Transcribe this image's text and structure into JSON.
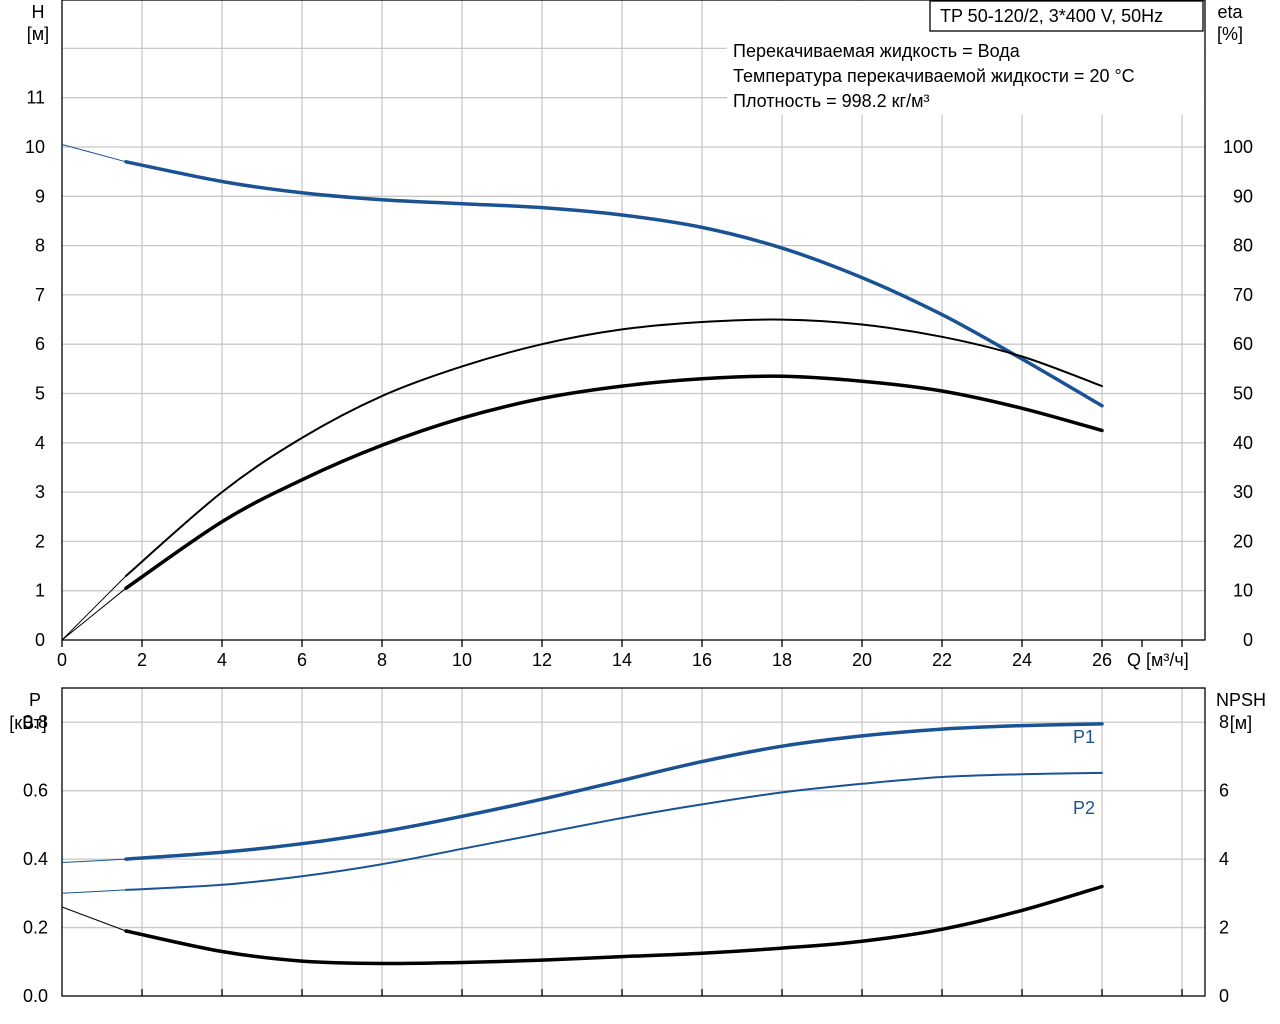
{
  "chart_data": [
    {
      "type": "line",
      "panel": "top",
      "title": "TP 50-120/2, 3*400 V, 50Hz",
      "annotations": [
        "Перекачиваемая жидкость = Вода",
        "Температура перекачиваемой жидкости = 20 °C",
        "Плотность = 998.2 кг/м³"
      ],
      "xlabel": "Q [м³/ч]",
      "ylabel_left": [
        "H",
        "[м]"
      ],
      "ylabel_right": [
        "eta",
        "[%]"
      ],
      "xlim": [
        0,
        28
      ],
      "ylim_left": [
        0,
        12.8
      ],
      "ylim_right": [
        0,
        128
      ],
      "xticks": [
        0,
        2,
        4,
        6,
        8,
        10,
        12,
        14,
        16,
        18,
        20,
        22,
        24,
        26
      ],
      "yticks_left": [
        0,
        1,
        2,
        3,
        4,
        5,
        6,
        7,
        8,
        9,
        10,
        11
      ],
      "yticks_right": [
        0,
        10,
        20,
        30,
        40,
        50,
        60,
        70,
        80,
        90,
        100
      ],
      "grid": true,
      "series": [
        {
          "color": "#1a5294",
          "axis": "left",
          "width": 3.5,
          "x": [
            1.6,
            4,
            6,
            8,
            10,
            12,
            14,
            16,
            18,
            20,
            22,
            24,
            26
          ],
          "y": [
            9.7,
            9.3,
            9.07,
            8.93,
            8.85,
            8.77,
            8.62,
            8.37,
            7.95,
            7.35,
            6.6,
            5.7,
            4.75
          ],
          "extension": {
            "x": [
              0,
              1.6
            ],
            "y": [
              10.05,
              9.7
            ]
          }
        },
        {
          "color": "#000000",
          "axis": "right",
          "width": 2,
          "x": [
            1.6,
            4,
            6,
            8,
            10,
            12,
            14,
            16,
            18,
            20,
            22,
            24,
            26
          ],
          "y": [
            13,
            30,
            41,
            49.5,
            55.5,
            60,
            63,
            64.5,
            65,
            64,
            61.5,
            57.5,
            51.5
          ],
          "extension": {
            "x": [
              0,
              1.6
            ],
            "y": [
              0,
              13
            ]
          }
        },
        {
          "color": "#000000",
          "axis": "right",
          "width": 3.5,
          "x": [
            1.6,
            4,
            6,
            8,
            10,
            12,
            14,
            16,
            18,
            20,
            22,
            24,
            26
          ],
          "y": [
            10.5,
            24,
            32.5,
            39.5,
            45,
            49,
            51.5,
            53,
            53.5,
            52.5,
            50.5,
            47,
            42.5
          ],
          "extension": {
            "x": [
              0,
              1.6
            ],
            "y": [
              0,
              10.5
            ]
          }
        }
      ]
    },
    {
      "type": "line",
      "panel": "bottom",
      "ylabel_left": [
        "P",
        "[кВт]"
      ],
      "ylabel_right": [
        "NPSH",
        "[м]"
      ],
      "xlim": [
        0,
        28
      ],
      "ylim_left": [
        0,
        0.9
      ],
      "ylim_right": [
        0,
        9
      ],
      "yticks_left": [
        "0.0",
        "0.2",
        "0.4",
        "0.6",
        "0.8"
      ],
      "yticks_right": [
        0,
        2,
        4,
        6,
        8
      ],
      "grid": true,
      "series": [
        {
          "name": "P1",
          "color": "#1a5294",
          "axis": "left",
          "width": 3.5,
          "x": [
            1.6,
            4,
            6,
            8,
            10,
            12,
            14,
            16,
            18,
            20,
            22,
            24,
            26
          ],
          "y": [
            0.4,
            0.42,
            0.445,
            0.48,
            0.525,
            0.575,
            0.63,
            0.685,
            0.73,
            0.76,
            0.78,
            0.79,
            0.795
          ],
          "extension": {
            "x": [
              0,
              1.6
            ],
            "y": [
              0.39,
              0.4
            ]
          }
        },
        {
          "name": "P2",
          "color": "#1a5294",
          "axis": "left",
          "width": 2,
          "x": [
            1.6,
            4,
            6,
            8,
            10,
            12,
            14,
            16,
            18,
            20,
            22,
            24,
            26
          ],
          "y": [
            0.31,
            0.325,
            0.35,
            0.385,
            0.43,
            0.475,
            0.52,
            0.56,
            0.595,
            0.62,
            0.64,
            0.648,
            0.652
          ],
          "extension": {
            "x": [
              0,
              1.6
            ],
            "y": [
              0.3,
              0.31
            ]
          }
        },
        {
          "color": "#000000",
          "axis": "right",
          "width": 3.5,
          "x": [
            1.6,
            4,
            6,
            8,
            10,
            12,
            14,
            16,
            18,
            20,
            22,
            24,
            26
          ],
          "y": [
            1.9,
            1.3,
            1.02,
            0.95,
            0.98,
            1.05,
            1.15,
            1.25,
            1.4,
            1.6,
            1.95,
            2.5,
            3.2
          ],
          "extension": {
            "x": [
              0,
              1.6
            ],
            "y": [
              2.6,
              1.9
            ]
          }
        }
      ]
    }
  ]
}
